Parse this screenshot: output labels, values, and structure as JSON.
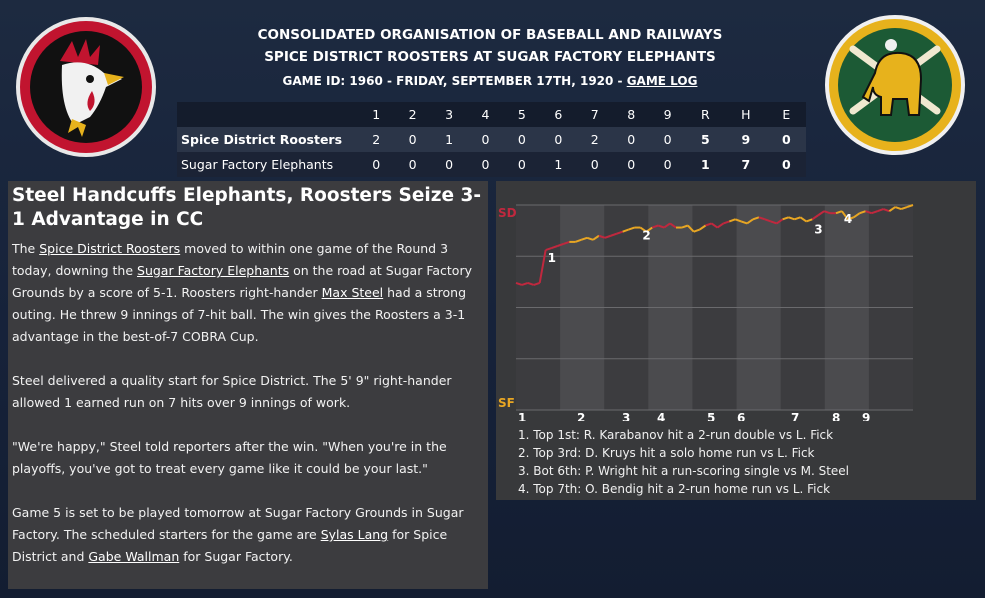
{
  "header": {
    "league": "CONSOLIDATED ORGANISATION OF BASEBALL AND RAILWAYS",
    "matchup": "SPICE DISTRICT ROOSTERS AT SUGAR FACTORY ELEPHANTS",
    "game_info": "GAME ID: 1960 - FRIDAY, SEPTEMBER 17TH, 1920 - ",
    "game_log_link": "GAME LOG"
  },
  "logos": {
    "home_icon": "rooster-logo-icon",
    "away_icon": "elephant-logo-icon",
    "colors": {
      "roosters_red": "#c1142f",
      "elephants_green": "#1c5a35",
      "elephants_gold": "#e7b21c"
    }
  },
  "linescore": {
    "columns": [
      "1",
      "2",
      "3",
      "4",
      "5",
      "6",
      "7",
      "8",
      "9",
      "R",
      "H",
      "E"
    ],
    "rows": [
      {
        "team": "Spice District Roosters",
        "innings": [
          "2",
          "0",
          "1",
          "0",
          "0",
          "0",
          "2",
          "0",
          "0"
        ],
        "r": "5",
        "h": "9",
        "e": "0"
      },
      {
        "team": "Sugar Factory Elephants",
        "innings": [
          "0",
          "0",
          "0",
          "0",
          "0",
          "1",
          "0",
          "0",
          "0"
        ],
        "r": "1",
        "h": "7",
        "e": "0"
      }
    ]
  },
  "article": {
    "title": "Steel Handcuffs Elephants, Roosters Seize 3-1 Advantage in CC",
    "p1": [
      {
        "t": "The "
      },
      {
        "t": "Spice District Roosters",
        "link": true
      },
      {
        "t": " moved to within one game of the Round 3 today, downing the "
      },
      {
        "t": "Sugar Factory Elephants",
        "link": true
      },
      {
        "t": " on the road at Sugar Factory Grounds by a score of 5-1. Roosters right-hander "
      },
      {
        "t": "Max Steel",
        "link": true
      },
      {
        "t": " had a strong outing. He threw 9 innings of 7-hit ball. The win gives the Roosters a 3-1 advantage in the best-of-7 COBRA Cup."
      }
    ],
    "p2": "Steel delivered a quality start for Spice District. The 5' 9\" right-hander allowed 1 earned run on 7 hits over 9 innings of work.",
    "p3": "\"We're happy,\" Steel told reporters after the win. \"When you're in the playoffs, you've got to treat every game like it could be your last.\"",
    "p4": [
      {
        "t": "Game 5 is set to be played tomorrow at Sugar Factory Grounds in Sugar Factory. The scheduled starters for the game are "
      },
      {
        "t": "Sylas Lang",
        "link": true
      },
      {
        "t": " for Spice District and "
      },
      {
        "t": "Gabe Wallman",
        "link": true
      },
      {
        "t": " for Sugar Factory."
      }
    ]
  },
  "chart_data": {
    "type": "line",
    "top_label": "SD",
    "bottom_label": "SF",
    "top_color": "#c0283e",
    "bottom_color": "#e8a623",
    "ylim": [
      0,
      1
    ],
    "x_tick_labels": [
      "1",
      "2",
      "3",
      "4",
      "5",
      "6",
      "7",
      "8",
      "9"
    ],
    "series": [
      {
        "values": [
          0.62,
          0.61,
          0.62,
          0.61,
          0.62,
          0.78,
          0.79,
          0.8,
          0.81,
          0.82,
          0.82,
          0.83,
          0.84,
          0.83,
          0.85,
          0.84,
          0.85,
          0.86,
          0.87,
          0.88,
          0.89,
          0.89,
          0.87,
          0.89,
          0.9,
          0.89,
          0.91,
          0.89,
          0.89,
          0.9,
          0.87,
          0.88,
          0.9,
          0.91,
          0.89,
          0.91,
          0.92,
          0.93,
          0.92,
          0.91,
          0.93,
          0.94,
          0.93,
          0.92,
          0.91,
          0.93,
          0.94,
          0.93,
          0.94,
          0.92,
          0.93,
          0.95,
          0.97,
          0.96,
          0.96,
          0.97,
          0.93,
          0.94,
          0.96,
          0.97,
          0.96,
          0.97,
          0.98,
          0.97,
          0.99,
          0.98,
          0.99,
          1.0
        ]
      }
    ],
    "markers": [
      "1",
      "2",
      "3",
      "4"
    ],
    "plays": [
      "1. Top 1st: R. Karabanov hit a 2-run double vs L. Fick",
      "2. Top 3rd: D. Kruys hit a solo home run vs L. Fick",
      "3. Bot 6th: P. Wright hit a run-scoring single vs M. Steel",
      "4. Top 7th: O. Bendig hit a 2-run home run vs L. Fick"
    ]
  }
}
